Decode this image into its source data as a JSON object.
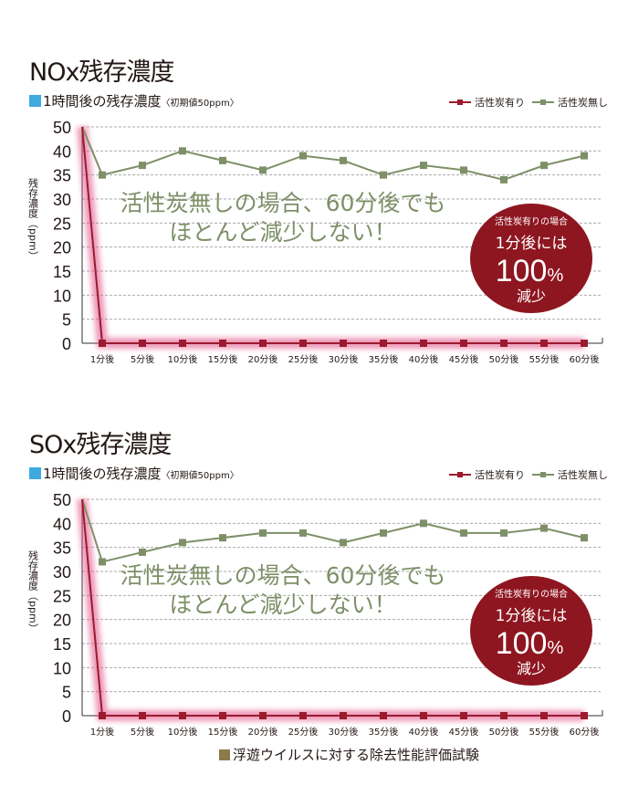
{
  "colors": {
    "with_carbon": "#9b1b2e",
    "without_carbon": "#7e9068",
    "circle": "#8e1620",
    "glow": "#e2548a",
    "subtitle_square": "#3fa9e0"
  },
  "footer": "浮遊ウイルスに対する除去性能評価試験",
  "chart_data": [
    {
      "type": "line",
      "title": "NOx残存濃度",
      "subtitle": "1時間後の残存濃度",
      "subtitle_note": "〈初期値50ppm〉",
      "ylabel": "残存濃度（ppm）",
      "yticks": [
        0,
        5,
        10,
        15,
        20,
        25,
        30,
        35,
        40,
        50
      ],
      "ylim": [
        0,
        50
      ],
      "grid": true,
      "legend": "top-right",
      "x_categories": [
        "1分後",
        "5分後",
        "10分後",
        "15分後",
        "20分後",
        "25分後",
        "30分後",
        "35分後",
        "40分後",
        "45分後",
        "50分後",
        "55分後",
        "60分後"
      ],
      "initial": 50,
      "series": [
        {
          "name": "活性炭有り",
          "values": [
            0,
            0,
            0,
            0,
            0,
            0,
            0,
            0,
            0,
            0,
            0,
            0,
            0
          ]
        },
        {
          "name": "活性炭無し",
          "values": [
            35,
            37,
            40,
            38,
            36,
            39,
            38,
            35,
            37,
            36,
            34,
            37,
            39
          ]
        }
      ],
      "annotation": [
        "活性炭無しの場合、60分後でも",
        "ほとんど減少しない！"
      ],
      "badge": {
        "line1": "活性炭有りの場合",
        "line2": "1分後には",
        "big": "100",
        "pct": "%",
        "line4": "減少"
      }
    },
    {
      "type": "line",
      "title": "SOx残存濃度",
      "subtitle": "1時間後の残存濃度",
      "subtitle_note": "〈初期値50ppm〉",
      "ylabel": "残存濃度（ppm）",
      "yticks": [
        0,
        5,
        10,
        15,
        20,
        25,
        30,
        35,
        40,
        50
      ],
      "ylim": [
        0,
        50
      ],
      "grid": true,
      "legend": "top-right",
      "x_categories": [
        "1分後",
        "5分後",
        "10分後",
        "15分後",
        "20分後",
        "25分後",
        "30分後",
        "35分後",
        "40分後",
        "45分後",
        "50分後",
        "55分後",
        "60分後"
      ],
      "initial": 50,
      "series": [
        {
          "name": "活性炭有り",
          "values": [
            0,
            0,
            0,
            0,
            0,
            0,
            0,
            0,
            0,
            0,
            0,
            0,
            0
          ]
        },
        {
          "name": "活性炭無し",
          "values": [
            32,
            34,
            36,
            37,
            38,
            38,
            36,
            38,
            40,
            38,
            38,
            39,
            37
          ]
        }
      ],
      "annotation": [
        "活性炭無しの場合、60分後でも",
        "ほとんど減少しない！"
      ],
      "badge": {
        "line1": "活性炭有りの場合",
        "line2": "1分後には",
        "big": "100",
        "pct": "%",
        "line4": "減少"
      }
    }
  ]
}
